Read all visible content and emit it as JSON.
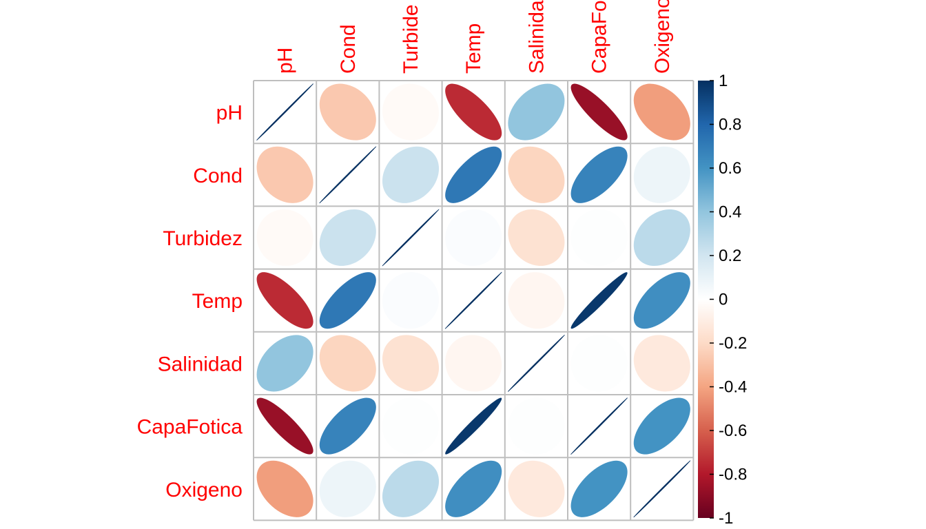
{
  "chart_data": {
    "type": "heatmap",
    "subtype": "correlation-ellipse-matrix",
    "variables": [
      "pH",
      "Cond",
      "Turbidez",
      "Temp",
      "Salinidad",
      "CapaFotica",
      "Oxigeno"
    ],
    "column_labels": [
      "pH",
      "Cond",
      "Turbide",
      "Temp",
      "Salinida",
      "CapaFo",
      "Oxigeno"
    ],
    "matrix": [
      [
        1.0,
        -0.27,
        -0.03,
        -0.75,
        0.4,
        -0.87,
        -0.42
      ],
      [
        -0.27,
        1.0,
        0.22,
        0.72,
        -0.22,
        0.67,
        0.08
      ],
      [
        -0.03,
        0.22,
        1.0,
        0.02,
        -0.16,
        0.01,
        0.27
      ],
      [
        -0.75,
        0.72,
        0.02,
        1.0,
        -0.05,
        0.97,
        0.62
      ],
      [
        0.4,
        -0.22,
        -0.16,
        -0.05,
        1.0,
        0.01,
        -0.12
      ],
      [
        -0.87,
        0.67,
        0.01,
        0.97,
        0.01,
        1.0,
        0.6
      ],
      [
        -0.42,
        0.08,
        0.27,
        0.62,
        -0.12,
        0.6,
        1.0
      ]
    ],
    "legend": {
      "ticks": [
        "1",
        "0.8",
        "0.6",
        "0.4",
        "0.2",
        "0",
        "-0.2",
        "-0.4",
        "-0.6",
        "-0.8",
        "-1"
      ],
      "range": [
        -1,
        1
      ]
    },
    "label_color": "#ff0000",
    "grid_color": "#bebebe",
    "color_scale": [
      "#67001F",
      "#B2182B",
      "#D6604D",
      "#F4A582",
      "#FDDBC7",
      "#FFFFFF",
      "#D1E5F0",
      "#92C5DE",
      "#4393C3",
      "#2166AC",
      "#053061"
    ]
  }
}
